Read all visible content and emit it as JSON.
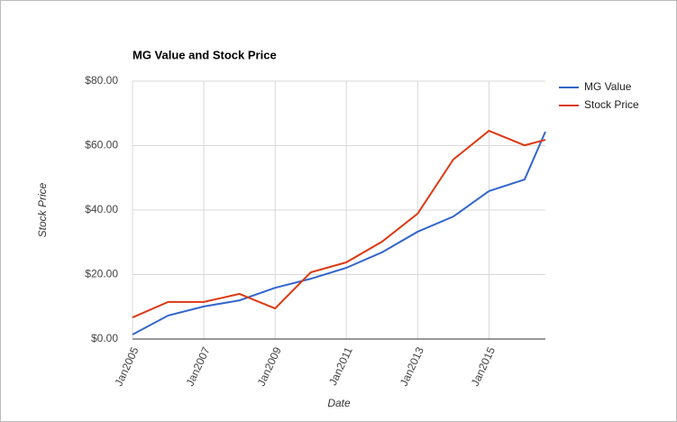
{
  "chart_data": {
    "type": "line",
    "title": "MG Value and Stock Price",
    "x_label": "Date",
    "y_label": "Stock Price",
    "x": [
      "2005-01",
      "2006-01",
      "2007-01",
      "2008-01",
      "2009-01",
      "2010-01",
      "2011-01",
      "2012-01",
      "2013-01",
      "2014-01",
      "2015-01",
      "2016-01",
      "2016-08"
    ],
    "series": [
      {
        "name": "MG Value",
        "color": "#3366cc",
        "values": [
          1.4,
          7.3,
          10.1,
          12.0,
          15.9,
          18.7,
          22.1,
          26.9,
          33.3,
          38.0,
          45.9,
          49.5,
          64.3
        ]
      },
      {
        "name": "Stock Price",
        "color": "#dc3912",
        "values": [
          6.7,
          11.5,
          11.5,
          14.0,
          9.5,
          20.7,
          23.8,
          30.2,
          38.9,
          55.7,
          64.6,
          60.1,
          61.8
        ]
      }
    ],
    "xlim": [
      "2005-01",
      "2016-08"
    ],
    "xticks": [
      {
        "value": "2005-01",
        "label": "Jan2005"
      },
      {
        "value": "2007-01",
        "label": "Jan2007"
      },
      {
        "value": "2009-01",
        "label": "Jan2009"
      },
      {
        "value": "2011-01",
        "label": "Jan2011"
      },
      {
        "value": "2013-01",
        "label": "Jan2013"
      },
      {
        "value": "2015-01",
        "label": "Jan2015"
      }
    ],
    "ylim": [
      0,
      80
    ],
    "yticks": [
      {
        "value": 0,
        "label": "$0.00"
      },
      {
        "value": 20,
        "label": "$20.00"
      },
      {
        "value": 40,
        "label": "$40.00"
      },
      {
        "value": 60,
        "label": "$60.00"
      },
      {
        "value": 80,
        "label": "$80.00"
      }
    ],
    "grid": true,
    "legend": "right"
  }
}
